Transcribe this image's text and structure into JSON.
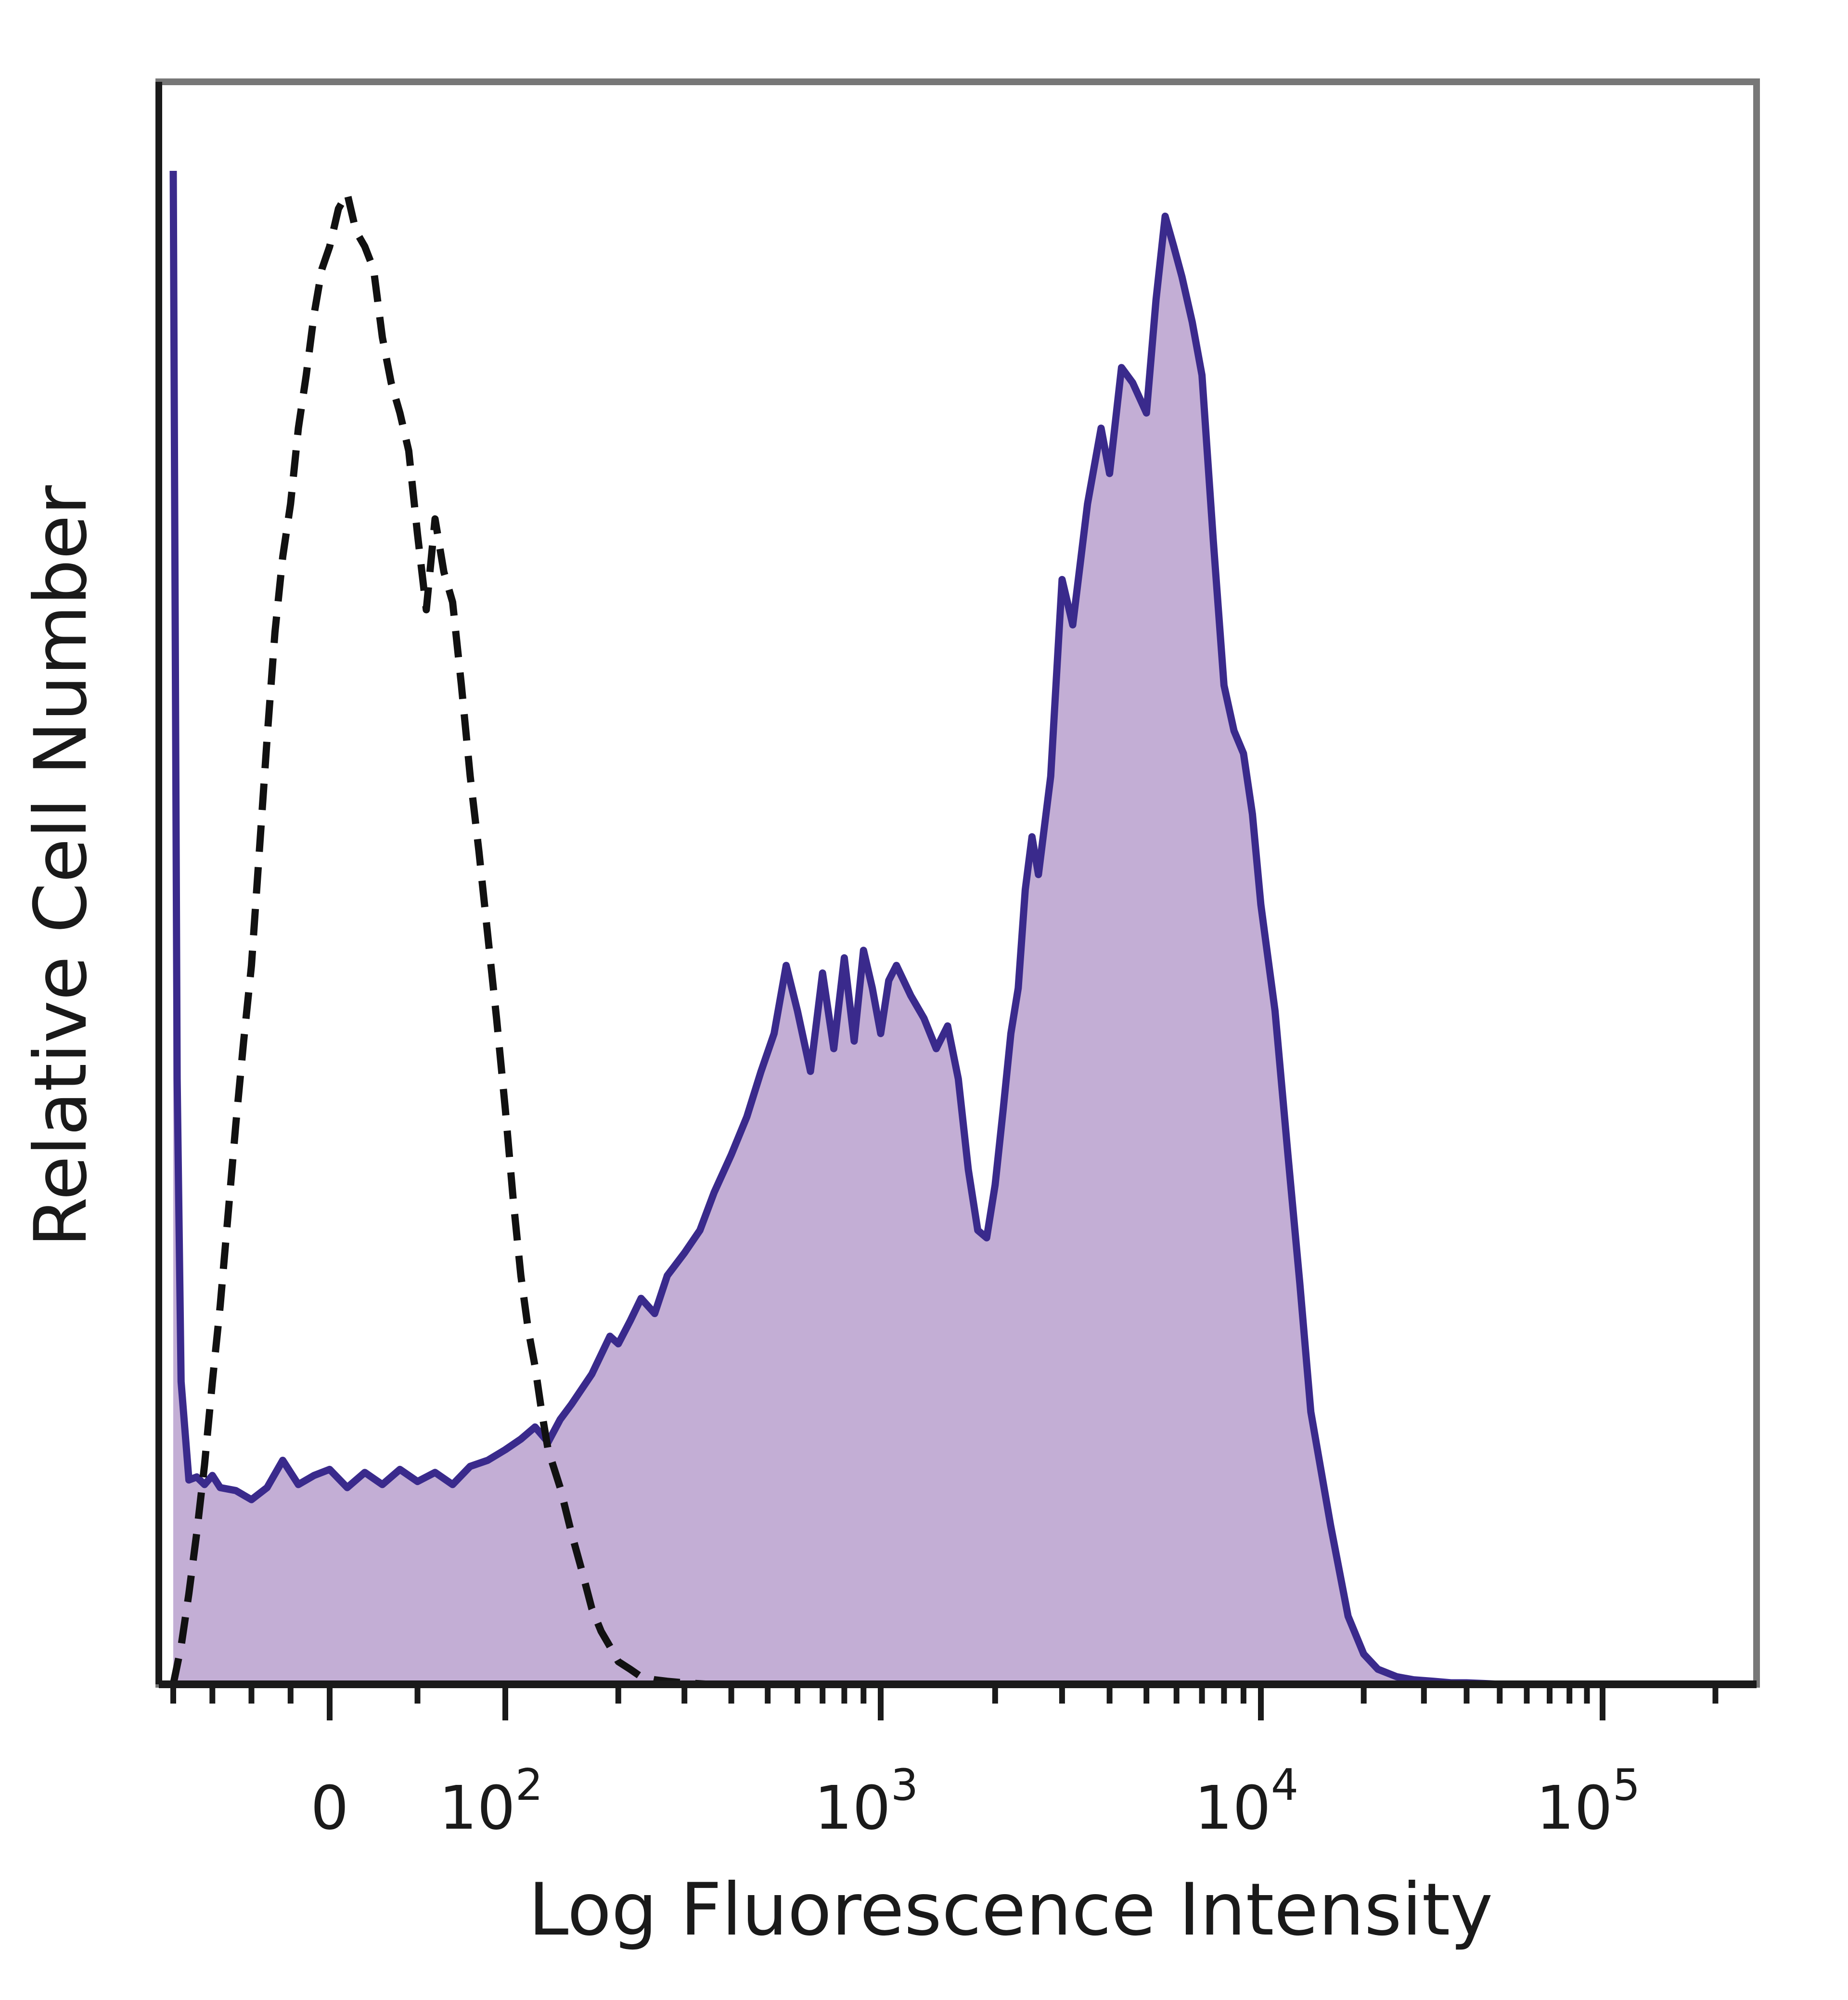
{
  "chart_data": {
    "type": "area",
    "title": "",
    "xlabel": "Log Fluorescence Intensity",
    "ylabel": "Relative Cell Number",
    "x_scale": "biexponential",
    "xlim": [
      -200,
      250000
    ],
    "ylim": [
      0,
      100
    ],
    "grid": false,
    "legend": "none",
    "x_tick_labels": [
      {
        "value": 0,
        "base": "0",
        "exp": ""
      },
      {
        "value": 100,
        "base": "10",
        "exp": "2"
      },
      {
        "value": 1000,
        "base": "10",
        "exp": "3"
      },
      {
        "value": 10000,
        "base": "10",
        "exp": "4"
      },
      {
        "value": 100000,
        "base": "10",
        "exp": "5"
      }
    ],
    "series": [
      {
        "style": "filled",
        "fill_color": "#c3aed5",
        "line_color": "#3a2a8c",
        "x": [
          -200,
          -195,
          -190,
          -180,
          -170,
          -160,
          -150,
          -140,
          -120,
          -100,
          -80,
          -60,
          -40,
          -20,
          0,
          10,
          20,
          30,
          40,
          50,
          60,
          70,
          80,
          90,
          100,
          110,
          120,
          130,
          140,
          150,
          170,
          190,
          200,
          215,
          230,
          250,
          270,
          300,
          330,
          360,
          400,
          440,
          480,
          520,
          560,
          600,
          650,
          700,
          750,
          800,
          850,
          900,
          950,
          1000,
          1050,
          1100,
          1200,
          1300,
          1400,
          1500,
          1600,
          1700,
          1800,
          1900,
          2000,
          2100,
          2200,
          2300,
          2400,
          2500,
          2600,
          2800,
          3000,
          3200,
          3500,
          3800,
          4000,
          4300,
          4600,
          5000,
          5300,
          5600,
          5900,
          6200,
          6600,
          7000,
          7500,
          8000,
          8500,
          9000,
          9500,
          10000,
          11000,
          12000,
          13000,
          14000,
          16000,
          18000,
          20000,
          22000,
          25000,
          28000,
          32000,
          36000,
          40000,
          45000,
          50000,
          60000,
          80000,
          100000,
          150000,
          250000
        ],
        "values": [
          100,
          40,
          20,
          13.5,
          13.7,
          13.2,
          13.8,
          13.0,
          12.8,
          12.2,
          13.0,
          14.8,
          13.2,
          13.8,
          14.2,
          13.0,
          14.0,
          13.2,
          14.2,
          13.4,
          14.0,
          13.2,
          14.4,
          14.8,
          15.5,
          16.2,
          17.0,
          16.0,
          17.5,
          18.5,
          20.5,
          23.0,
          22.5,
          24.0,
          25.5,
          24.5,
          27.0,
          28.5,
          30.0,
          32.5,
          35.0,
          37.5,
          40.5,
          43.0,
          47.5,
          44.5,
          40.5,
          47.0,
          42.0,
          48.0,
          42.5,
          48.5,
          46.0,
          43.0,
          46.5,
          47.5,
          45.5,
          44.0,
          42.0,
          43.5,
          40.0,
          34.0,
          30.0,
          29.5,
          33.0,
          38.0,
          43.0,
          46.0,
          52.5,
          56.0,
          53.5,
          60.0,
          73.0,
          70.0,
          78.0,
          83.0,
          80.0,
          87.0,
          86.0,
          84.0,
          91.5,
          97.0,
          95.0,
          93.0,
          90.0,
          86.5,
          75.5,
          66.0,
          63.0,
          61.5,
          57.5,
          51.5,
          44.5,
          35.0,
          26.5,
          18.0,
          10.5,
          4.5,
          2.0,
          1.0,
          0.5,
          0.3,
          0.2,
          0.1,
          0.1,
          0.05,
          0,
          0,
          0,
          0,
          0,
          0
        ]
      },
      {
        "style": "dashed",
        "line_color": "#111111",
        "x": [
          -200,
          -190,
          -180,
          -170,
          -160,
          -150,
          -140,
          -130,
          -120,
          -110,
          -100,
          -90,
          -80,
          -70,
          -60,
          -50,
          -40,
          -30,
          -20,
          -10,
          0,
          5,
          10,
          15,
          20,
          25,
          30,
          35,
          40,
          45,
          50,
          55,
          60,
          65,
          70,
          75,
          80,
          85,
          90,
          95,
          100,
          105,
          110,
          115,
          120,
          125,
          130,
          140,
          150,
          160,
          170,
          180,
          190,
          200,
          215,
          230,
          250,
          270,
          300,
          350,
          400,
          500,
          700,
          1000,
          2000,
          5000,
          10000,
          30000,
          100000,
          250000
        ],
        "values": [
          0,
          2.5,
          6.0,
          10.0,
          14.5,
          20.0,
          25.0,
          31.0,
          37.0,
          42.5,
          47.5,
          55.0,
          62.5,
          69.5,
          74.5,
          78.0,
          83.0,
          86.5,
          90.5,
          93.5,
          95.0,
          97.5,
          98.5,
          96.0,
          95.0,
          93.5,
          89.0,
          86.0,
          84.0,
          81.5,
          76.0,
          71.0,
          77.0,
          73.5,
          71.5,
          66.0,
          60.0,
          55.0,
          49.5,
          44.0,
          38.0,
          32.0,
          27.0,
          23.5,
          21.0,
          18.0,
          15.5,
          13.0,
          10.0,
          7.5,
          5.0,
          3.5,
          2.5,
          1.5,
          1.0,
          0.5,
          0.3,
          0.2,
          0.1,
          0,
          0,
          0,
          0,
          0,
          0,
          0,
          0,
          0,
          0,
          0
        ]
      }
    ]
  }
}
